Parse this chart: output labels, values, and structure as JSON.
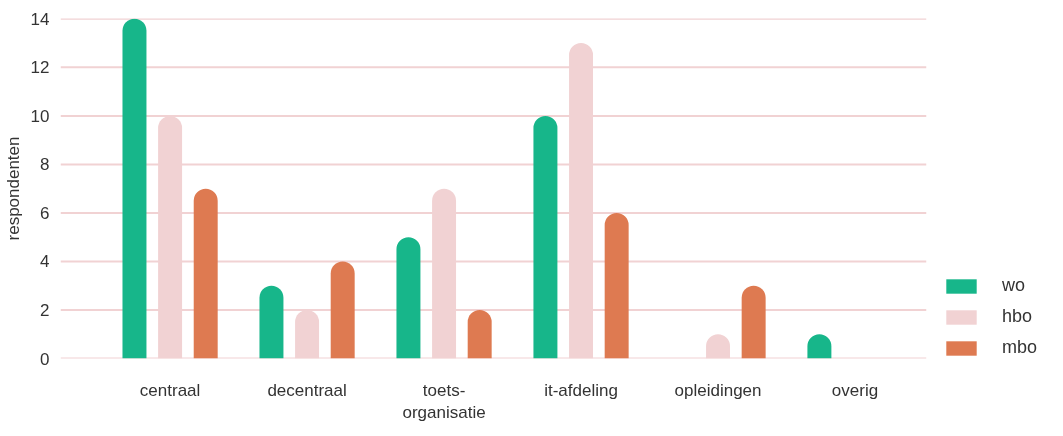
{
  "chart_data": {
    "type": "bar",
    "ylabel": "respondenten",
    "categories": [
      "centraal",
      "decentraal",
      "toets-\norganisatie",
      "it-afdeling",
      "opleidingen",
      "overig"
    ],
    "series": [
      {
        "name": "wo",
        "color": "#17b68a",
        "values": [
          14,
          3,
          5,
          10,
          0,
          1
        ]
      },
      {
        "name": "hbo",
        "color": "#f1d2d3",
        "values": [
          10,
          2,
          7,
          13,
          1,
          0
        ]
      },
      {
        "name": "mbo",
        "color": "#de7a51",
        "values": [
          7,
          4,
          2,
          6,
          3,
          0
        ]
      }
    ],
    "ylim": [
      0,
      14
    ],
    "yticks": [
      0,
      2,
      4,
      6,
      8,
      10,
      12,
      14
    ],
    "grid": "y",
    "legend": "bottom right"
  }
}
